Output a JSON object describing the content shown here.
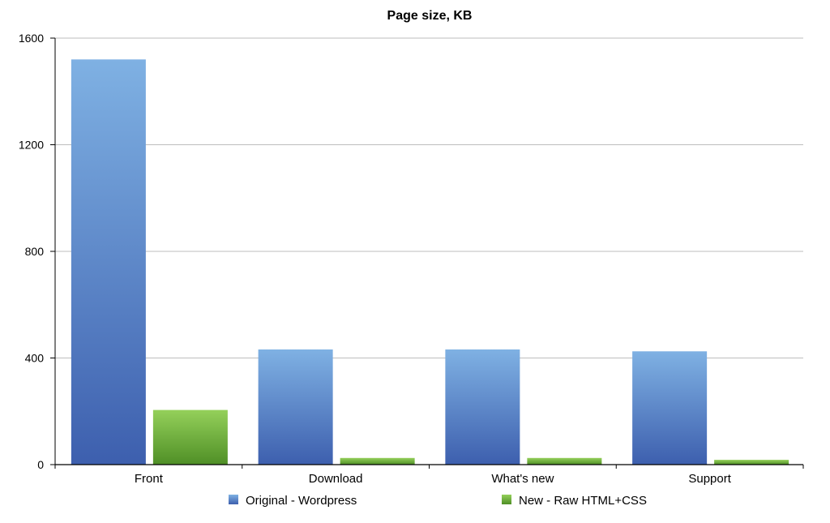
{
  "chart_data": {
    "type": "bar",
    "title": "Page size, KB",
    "categories": [
      "Front",
      "Download",
      "What's new",
      "Support"
    ],
    "series": [
      {
        "name": "Original - Wordpress",
        "values": [
          1520,
          432,
          432,
          425
        ],
        "color": "#4f7fd0"
      },
      {
        "name": "New - Raw HTML+CSS",
        "values": [
          205,
          25,
          25,
          18
        ],
        "color": "#6fb43a"
      }
    ],
    "ylim": [
      0,
      1600
    ],
    "yticks": [
      0,
      400,
      800,
      1200,
      1600
    ],
    "grid": true,
    "legend": "bottom"
  }
}
